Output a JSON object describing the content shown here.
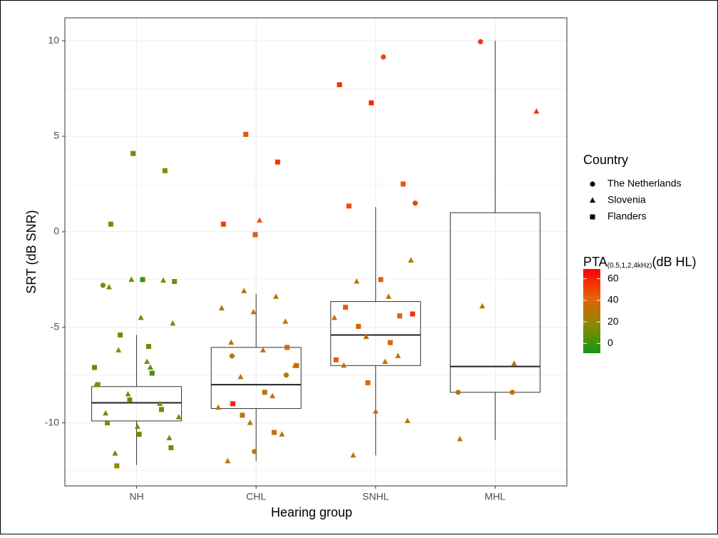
{
  "chart_data": {
    "type": "box",
    "x_label": "Hearing group",
    "y_label": "SRT (dB SNR)",
    "categories": [
      "NH",
      "CHL",
      "SNHL",
      "MHL"
    ],
    "boxes": [
      {
        "min": -12.2,
        "q1": -9.9,
        "median": -8.95,
        "q3": -8.1,
        "max": -5.4
      },
      {
        "min": -12.0,
        "q1": -9.25,
        "median": -8.0,
        "q3": -6.05,
        "max": -3.25
      },
      {
        "min": -11.7,
        "q1": -7.0,
        "median": -5.4,
        "q3": -3.65,
        "max": 1.3
      },
      {
        "min": -10.9,
        "q1": -8.4,
        "median": -7.05,
        "q3": 1.0,
        "max": 10.0
      }
    ],
    "ylim": [
      -13.3,
      11.2
    ],
    "yticks": [
      -10,
      -5,
      0,
      5,
      10
    ],
    "grid": true,
    "legend_title": "Country",
    "series": [
      {
        "name": "The Netherlands",
        "shape": "circle",
        "x": [
          "NH",
          "CHL",
          "CHL",
          "CHL",
          "SNHL",
          "SNHL",
          "MHL",
          "MHL",
          "MHL"
        ],
        "values": [
          -2.8,
          -11.5,
          -7.5,
          -6.5,
          9.15,
          1.5,
          9.95,
          -8.4,
          -8.4
        ],
        "pta": [
          15,
          30,
          30,
          28,
          50,
          52,
          55,
          35,
          30
        ]
      },
      {
        "name": "Slovenia",
        "shape": "triangle",
        "x": [
          "NH",
          "NH",
          "NH",
          "NH",
          "NH",
          "NH",
          "NH",
          "NH",
          "NH",
          "NH",
          "NH",
          "NH",
          "NH",
          "NH",
          "NH",
          "NH",
          "CHL",
          "CHL",
          "CHL",
          "CHL",
          "CHL",
          "CHL",
          "CHL",
          "CHL",
          "CHL",
          "CHL",
          "CHL",
          "CHL",
          "CHL",
          "CHL",
          "CHL",
          "SNHL",
          "SNHL",
          "SNHL",
          "SNHL",
          "SNHL",
          "SNHL",
          "SNHL",
          "SNHL",
          "SNHL",
          "SNHL",
          "SNHL",
          "MHL",
          "MHL",
          "MHL",
          "MHL"
        ],
        "values": [
          -2.5,
          -2.55,
          -2.9,
          -4.5,
          -4.8,
          -6.2,
          -7.1,
          -8.0,
          -8.5,
          -9.0,
          -9.5,
          -10.2,
          -10.8,
          -11.6,
          -6.8,
          -9.7,
          -3.1,
          -3.4,
          -4.0,
          -4.2,
          -4.7,
          -5.8,
          -6.2,
          -7.0,
          -7.6,
          -8.6,
          -9.2,
          -10.0,
          -10.6,
          -12.0,
          0.6,
          -1.5,
          -2.6,
          -3.4,
          -4.5,
          -5.5,
          -6.5,
          -7.0,
          -9.4,
          -9.9,
          -11.7,
          -6.8,
          6.3,
          -3.9,
          -6.9,
          -10.85
        ],
        "pta": [
          12,
          14,
          13,
          10,
          12,
          15,
          11,
          14,
          12,
          13,
          10,
          12,
          14,
          11,
          13,
          12,
          28,
          30,
          26,
          32,
          30,
          27,
          33,
          29,
          31,
          28,
          30,
          32,
          27,
          30,
          45,
          30,
          35,
          32,
          38,
          30,
          34,
          33,
          30,
          31,
          34,
          32,
          55,
          30,
          25,
          28
        ]
      },
      {
        "name": "Flanders",
        "shape": "square",
        "x": [
          "NH",
          "NH",
          "NH",
          "NH",
          "NH",
          "NH",
          "NH",
          "NH",
          "NH",
          "NH",
          "NH",
          "NH",
          "NH",
          "NH",
          "NH",
          "NH",
          "CHL",
          "CHL",
          "CHL",
          "CHL",
          "CHL",
          "CHL",
          "CHL",
          "CHL",
          "CHL",
          "CHL",
          "SNHL",
          "SNHL",
          "SNHL",
          "SNHL",
          "SNHL",
          "SNHL",
          "SNHL",
          "SNHL",
          "SNHL",
          "SNHL",
          "SNHL",
          "SNHL"
        ],
        "values": [
          4.1,
          3.2,
          0.4,
          -2.5,
          -2.6,
          -5.4,
          -7.4,
          -8.0,
          -8.8,
          -9.3,
          -10.0,
          -10.6,
          -11.3,
          -12.25,
          -6.0,
          -7.1,
          5.1,
          3.65,
          0.4,
          -0.15,
          -6.05,
          -9.0,
          -8.4,
          -7.0,
          -9.6,
          -10.5,
          7.7,
          6.75,
          2.5,
          1.35,
          -2.5,
          -4.3,
          -4.95,
          -5.8,
          -6.7,
          -7.9,
          -4.4,
          -3.95
        ],
        "pta": [
          12,
          15,
          12,
          0,
          15,
          10,
          3,
          15,
          12,
          10,
          14,
          12,
          15,
          20,
          12,
          10,
          45,
          55,
          52,
          45,
          40,
          60,
          30,
          35,
          30,
          35,
          55,
          58,
          45,
          48,
          40,
          55,
          35,
          40,
          45,
          40,
          40,
          45
        ]
      }
    ],
    "color_title": "PTA",
    "color_title_sub": "(0.5,1,2,4kHz)",
    "color_title_unit": "(dB HL)",
    "color_colors": [
      "#12960f",
      "#8a8a00",
      "#e6600a",
      "#ff0000"
    ],
    "color_lim": [
      -9,
      69
    ],
    "color_ticks": [
      0,
      20,
      40,
      60
    ]
  }
}
